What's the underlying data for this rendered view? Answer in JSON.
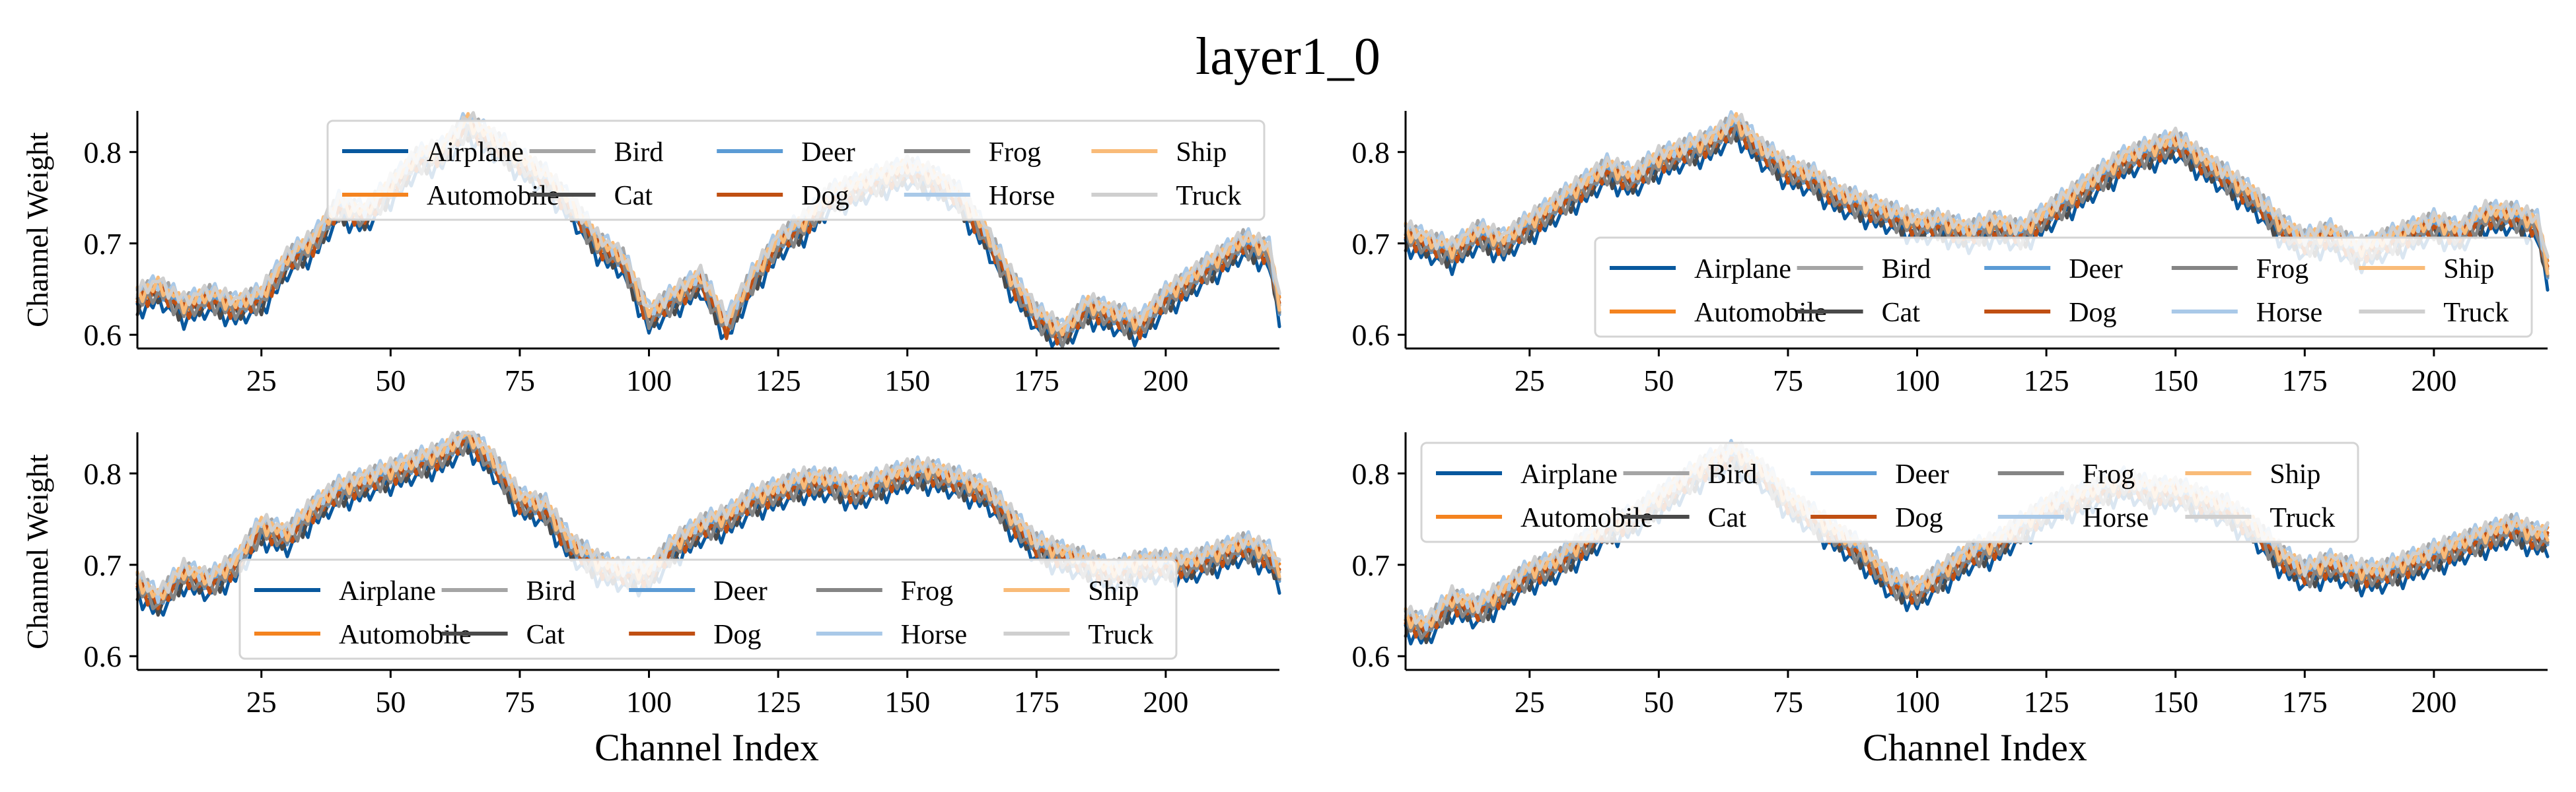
{
  "title": "layer1_0",
  "xlabel": "Channel Index",
  "ylabel": "Channel Weight",
  "colors": {
    "Airplane": "#08589e",
    "Automobile": "#f4831f",
    "Bird": "#a5a5a5",
    "Cat": "#4a4a4a",
    "Deer": "#5b9bd5",
    "Dog": "#c04f12",
    "Frog": "#858585",
    "Horse": "#a9c9e8",
    "Ship": "#f9bb78",
    "Truck": "#cfcfcf"
  },
  "chart_data": [
    {
      "type": "line",
      "panel": "top-left",
      "ylabel": "Channel Weight",
      "xlabel": "",
      "xlim": [
        1,
        222
      ],
      "ylim": [
        0.585,
        0.845
      ],
      "xticks": [
        25,
        50,
        75,
        100,
        125,
        150,
        175,
        200
      ],
      "yticks": [
        0.6,
        0.7,
        0.8
      ],
      "legend": "top-center",
      "series_names": [
        "Airplane",
        "Automobile",
        "Bird",
        "Cat",
        "Deer",
        "Dog",
        "Frog",
        "Horse",
        "Ship",
        "Truck"
      ],
      "x": [
        1,
        5,
        10,
        15,
        20,
        25,
        30,
        35,
        40,
        45,
        50,
        55,
        60,
        65,
        70,
        75,
        80,
        85,
        90,
        95,
        100,
        105,
        110,
        115,
        120,
        125,
        130,
        135,
        140,
        145,
        150,
        155,
        160,
        165,
        170,
        175,
        180,
        185,
        190,
        195,
        200,
        205,
        210,
        215,
        220,
        222
      ],
      "values": [
        0.64,
        0.65,
        0.63,
        0.64,
        0.63,
        0.64,
        0.68,
        0.7,
        0.74,
        0.73,
        0.76,
        0.79,
        0.8,
        0.83,
        0.81,
        0.79,
        0.77,
        0.74,
        0.7,
        0.68,
        0.62,
        0.64,
        0.66,
        0.61,
        0.66,
        0.7,
        0.72,
        0.75,
        0.76,
        0.77,
        0.78,
        0.77,
        0.75,
        0.71,
        0.66,
        0.62,
        0.6,
        0.63,
        0.62,
        0.61,
        0.64,
        0.66,
        0.68,
        0.7,
        0.69,
        0.63
      ]
    },
    {
      "type": "line",
      "panel": "top-right",
      "ylabel": "",
      "xlabel": "",
      "xlim": [
        1,
        222
      ],
      "ylim": [
        0.585,
        0.845
      ],
      "xticks": [
        25,
        50,
        75,
        100,
        125,
        150,
        175,
        200
      ],
      "yticks": [
        0.6,
        0.7,
        0.8
      ],
      "legend": "center-right",
      "series_names": [
        "Airplane",
        "Automobile",
        "Bird",
        "Cat",
        "Deer",
        "Dog",
        "Frog",
        "Horse",
        "Ship",
        "Truck"
      ],
      "x": [
        1,
        5,
        10,
        15,
        20,
        25,
        30,
        35,
        40,
        45,
        50,
        55,
        60,
        65,
        70,
        75,
        80,
        85,
        90,
        95,
        100,
        105,
        110,
        115,
        120,
        125,
        130,
        135,
        140,
        145,
        150,
        155,
        160,
        165,
        170,
        175,
        180,
        185,
        190,
        195,
        200,
        205,
        210,
        215,
        220,
        222
      ],
      "values": [
        0.71,
        0.7,
        0.69,
        0.71,
        0.7,
        0.72,
        0.74,
        0.76,
        0.78,
        0.77,
        0.79,
        0.8,
        0.81,
        0.83,
        0.8,
        0.78,
        0.77,
        0.75,
        0.74,
        0.73,
        0.72,
        0.72,
        0.71,
        0.72,
        0.71,
        0.73,
        0.75,
        0.77,
        0.79,
        0.8,
        0.81,
        0.79,
        0.77,
        0.75,
        0.72,
        0.7,
        0.71,
        0.69,
        0.7,
        0.71,
        0.72,
        0.71,
        0.73,
        0.73,
        0.72,
        0.67
      ]
    },
    {
      "type": "line",
      "panel": "bottom-left",
      "ylabel": "Channel Weight",
      "xlabel": "Channel Index",
      "xlim": [
        1,
        222
      ],
      "ylim": [
        0.585,
        0.845
      ],
      "xticks": [
        25,
        50,
        75,
        100,
        125,
        150,
        175,
        200
      ],
      "yticks": [
        0.6,
        0.7,
        0.8
      ],
      "legend": "bottom-center",
      "series_names": [
        "Airplane",
        "Automobile",
        "Bird",
        "Cat",
        "Deer",
        "Dog",
        "Frog",
        "Horse",
        "Ship",
        "Truck"
      ],
      "x": [
        1,
        5,
        10,
        15,
        20,
        25,
        30,
        35,
        40,
        45,
        50,
        55,
        60,
        65,
        70,
        75,
        80,
        85,
        90,
        95,
        100,
        105,
        110,
        115,
        120,
        125,
        130,
        135,
        140,
        145,
        150,
        155,
        160,
        165,
        170,
        175,
        180,
        185,
        190,
        195,
        200,
        205,
        210,
        215,
        220,
        222
      ],
      "values": [
        0.68,
        0.66,
        0.69,
        0.68,
        0.7,
        0.74,
        0.73,
        0.76,
        0.78,
        0.79,
        0.8,
        0.81,
        0.82,
        0.84,
        0.81,
        0.77,
        0.76,
        0.72,
        0.7,
        0.69,
        0.69,
        0.72,
        0.74,
        0.75,
        0.77,
        0.78,
        0.79,
        0.79,
        0.78,
        0.79,
        0.8,
        0.8,
        0.79,
        0.78,
        0.75,
        0.72,
        0.71,
        0.7,
        0.69,
        0.7,
        0.7,
        0.7,
        0.71,
        0.72,
        0.71,
        0.69
      ]
    },
    {
      "type": "line",
      "panel": "bottom-right",
      "ylabel": "",
      "xlabel": "Channel Index",
      "xlim": [
        1,
        222
      ],
      "ylim": [
        0.585,
        0.845
      ],
      "xticks": [
        25,
        50,
        75,
        100,
        125,
        150,
        175,
        200
      ],
      "yticks": [
        0.6,
        0.7,
        0.8
      ],
      "legend": "top-left",
      "series_names": [
        "Airplane",
        "Automobile",
        "Bird",
        "Cat",
        "Deer",
        "Dog",
        "Frog",
        "Horse",
        "Ship",
        "Truck"
      ],
      "x": [
        1,
        5,
        10,
        15,
        20,
        25,
        30,
        35,
        40,
        45,
        50,
        55,
        60,
        65,
        70,
        75,
        80,
        85,
        90,
        95,
        100,
        105,
        110,
        115,
        120,
        125,
        130,
        135,
        140,
        145,
        150,
        155,
        160,
        165,
        170,
        175,
        180,
        185,
        190,
        195,
        200,
        205,
        210,
        215,
        220,
        222
      ],
      "values": [
        0.64,
        0.63,
        0.66,
        0.65,
        0.67,
        0.69,
        0.7,
        0.72,
        0.74,
        0.75,
        0.77,
        0.79,
        0.81,
        0.82,
        0.8,
        0.77,
        0.75,
        0.73,
        0.71,
        0.68,
        0.67,
        0.69,
        0.71,
        0.72,
        0.74,
        0.76,
        0.77,
        0.78,
        0.79,
        0.78,
        0.78,
        0.77,
        0.76,
        0.74,
        0.71,
        0.69,
        0.7,
        0.69,
        0.69,
        0.7,
        0.71,
        0.72,
        0.73,
        0.74,
        0.73,
        0.73
      ]
    }
  ]
}
